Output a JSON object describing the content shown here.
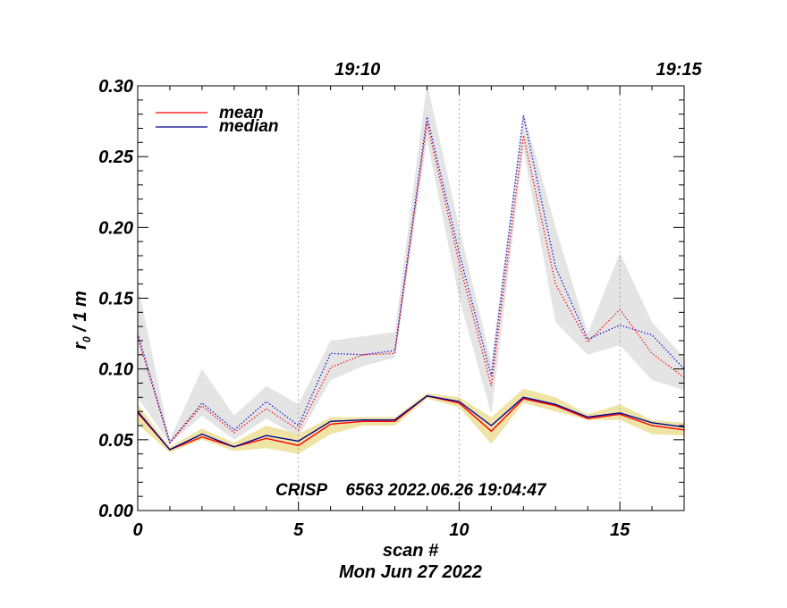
{
  "chart_data": {
    "type": "line",
    "xlabel": "scan #",
    "ylabel_main": "r",
    "ylabel_sub": "0",
    "ylabel_rest": " / 1 m",
    "xlim": [
      0,
      17
    ],
    "ylim": [
      0,
      0.3
    ],
    "x_ticks": [
      0,
      5,
      10,
      15
    ],
    "x_tick_labels": [
      "0",
      "5",
      "10",
      "15"
    ],
    "y_ticks": [
      0.0,
      0.05,
      0.1,
      0.15,
      0.2,
      0.25,
      0.3
    ],
    "y_tick_labels": [
      "0.00",
      "0.05",
      "0.10",
      "0.15",
      "0.20",
      "0.25",
      "0.30"
    ],
    "top_axis": {
      "ticks": [
        5,
        15
      ],
      "labels": [
        "19:10",
        "19:15"
      ]
    },
    "vertical_gridlines": [
      5,
      10,
      15
    ],
    "annotation": "CRISP    6563 2022.06.26 19:04:47",
    "date_label": "Mon Jun 27 2022",
    "legend": [
      {
        "label": "mean",
        "color": "#ff0000"
      },
      {
        "label": "median",
        "color": "#00008b"
      }
    ],
    "x": [
      0,
      1,
      2,
      3,
      4,
      5,
      6,
      7,
      8,
      9,
      10,
      11,
      12,
      13,
      14,
      15,
      16,
      17
    ],
    "series": [
      {
        "name": "mean (dotted)",
        "color": "#ff0000",
        "style": "dotted",
        "values": [
          0.122,
          0.048,
          0.074,
          0.055,
          0.072,
          0.057,
          0.101,
          0.11,
          0.111,
          0.274,
          0.175,
          0.088,
          0.265,
          0.16,
          0.119,
          0.142,
          0.111,
          0.094
        ]
      },
      {
        "name": "median (dotted)",
        "color": "#0000cc",
        "style": "dotted",
        "values": [
          0.125,
          0.048,
          0.076,
          0.057,
          0.077,
          0.06,
          0.111,
          0.11,
          0.113,
          0.278,
          0.182,
          0.095,
          0.279,
          0.172,
          0.121,
          0.131,
          0.124,
          0.1
        ]
      },
      {
        "name": "mean",
        "color": "#ff0000",
        "style": "solid",
        "values": [
          0.069,
          0.043,
          0.052,
          0.045,
          0.051,
          0.046,
          0.061,
          0.063,
          0.063,
          0.081,
          0.076,
          0.056,
          0.079,
          0.074,
          0.065,
          0.068,
          0.06,
          0.057
        ]
      },
      {
        "name": "median",
        "color": "#00008b",
        "style": "solid",
        "values": [
          0.07,
          0.043,
          0.054,
          0.045,
          0.053,
          0.049,
          0.063,
          0.064,
          0.064,
          0.081,
          0.077,
          0.06,
          0.08,
          0.075,
          0.066,
          0.069,
          0.062,
          0.059
        ]
      }
    ],
    "bands": [
      {
        "name": "gray range",
        "color": "#e4e4e4",
        "upper": [
          0.16,
          0.05,
          0.1,
          0.067,
          0.088,
          0.075,
          0.12,
          0.123,
          0.126,
          0.302,
          0.2,
          0.105,
          0.282,
          0.2,
          0.125,
          0.182,
          0.133,
          0.108
        ],
        "lower": [
          0.08,
          0.047,
          0.067,
          0.05,
          0.065,
          0.052,
          0.092,
          0.102,
          0.108,
          0.262,
          0.15,
          0.068,
          0.255,
          0.133,
          0.11,
          0.117,
          0.092,
          0.085
        ]
      },
      {
        "name": "yellow range",
        "color": "#efe4a6",
        "upper": [
          0.075,
          0.045,
          0.058,
          0.048,
          0.06,
          0.054,
          0.066,
          0.066,
          0.066,
          0.083,
          0.08,
          0.066,
          0.086,
          0.08,
          0.068,
          0.075,
          0.064,
          0.062
        ]
      },
      {
        "name": "yellow range lower",
        "color": "#efe4a6",
        "lower": [
          0.061,
          0.041,
          0.05,
          0.042,
          0.044,
          0.04,
          0.054,
          0.06,
          0.06,
          0.079,
          0.073,
          0.047,
          0.076,
          0.07,
          0.064,
          0.064,
          0.054,
          0.053
        ]
      }
    ]
  }
}
